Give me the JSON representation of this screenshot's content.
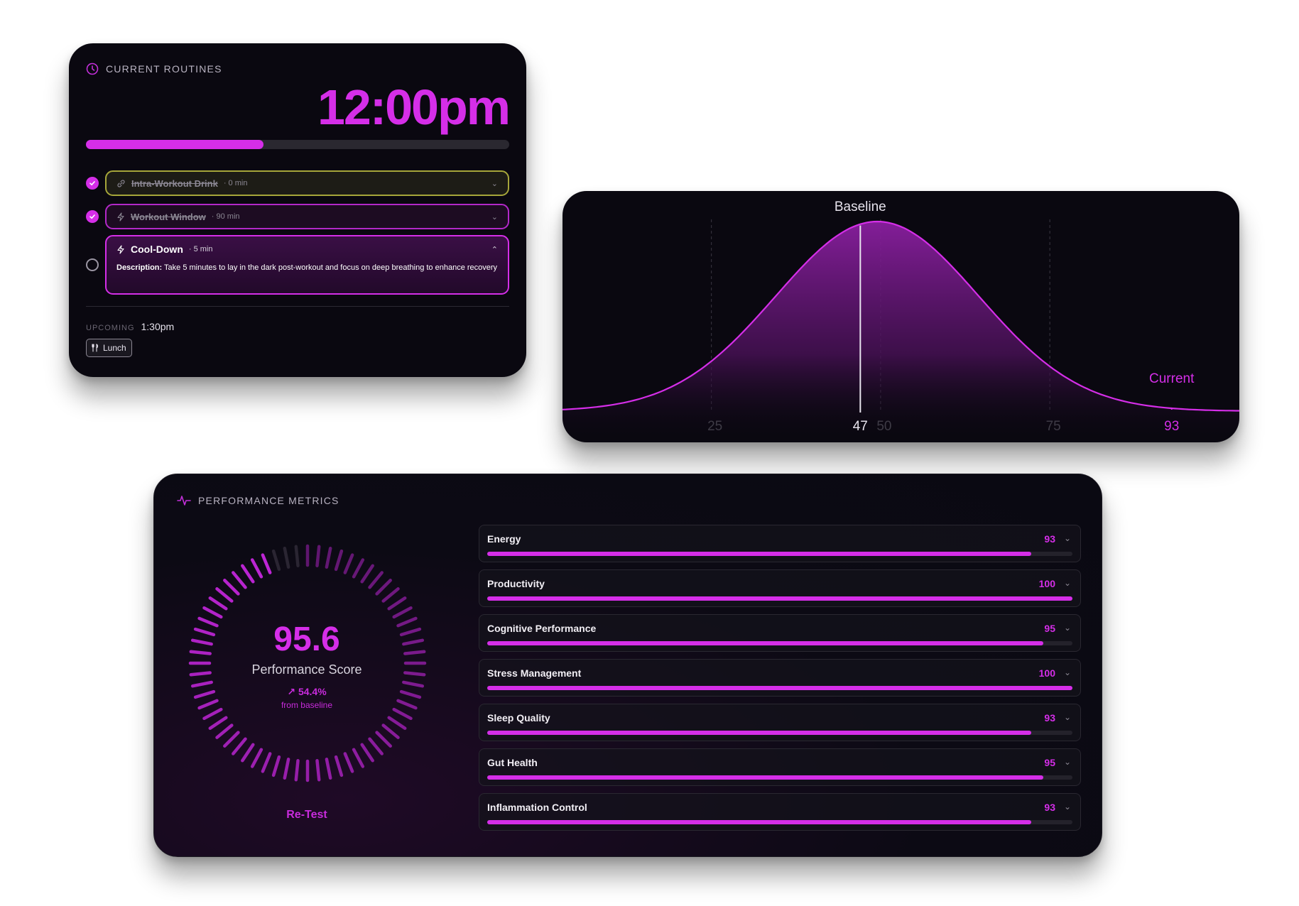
{
  "routines": {
    "header": "CURRENT ROUTINES",
    "clock": "12:00pm",
    "progress": 0.42,
    "tasks": [
      {
        "name": "Intra-Workout Drink",
        "duration": "· 0 min",
        "done": true,
        "icon": "link-icon"
      },
      {
        "name": "Workout Window",
        "duration": "· 90 min",
        "done": true,
        "icon": "lightning-icon"
      },
      {
        "name": "Cool-Down",
        "duration": "· 5 min",
        "done": false,
        "icon": "lightning-icon",
        "description_label": "Description:",
        "description": "Take 5 minutes to lay in the dark post-workout and focus on deep breathing to enhance recovery"
      }
    ],
    "upcoming_label": "UPCOMING",
    "upcoming_time": "1:30pm",
    "upcoming_item": "Lunch"
  },
  "chart_data": {
    "type": "area",
    "description_labels": {
      "baseline": "Baseline",
      "current": "Current"
    },
    "x_ticks": [
      "25",
      "50",
      "75"
    ],
    "x_range": [
      3,
      103
    ],
    "markers": {
      "baseline": 47,
      "current": 93
    },
    "marker_labels": [
      "47",
      "93"
    ],
    "curve": {
      "mean": 49.5,
      "sd": 15
    }
  },
  "performance": {
    "header": "PERFORMANCE METRICS",
    "score": "95.6",
    "score_label": "Performance Score",
    "delta": "54.4%",
    "delta_caption": "from baseline",
    "gauge_fraction": 0.956,
    "retest": "Re-Test",
    "metrics": [
      {
        "name": "Energy",
        "value": "93"
      },
      {
        "name": "Productivity",
        "value": "100"
      },
      {
        "name": "Cognitive Performance",
        "value": "95"
      },
      {
        "name": "Stress Management",
        "value": "100"
      },
      {
        "name": "Sleep Quality",
        "value": "93"
      },
      {
        "name": "Gut Health",
        "value": "95"
      },
      {
        "name": "Inflammation Control",
        "value": "93"
      }
    ]
  },
  "colors": {
    "accent": "#d52ee8",
    "card": "#0a0810",
    "muted": "#8b8793"
  }
}
